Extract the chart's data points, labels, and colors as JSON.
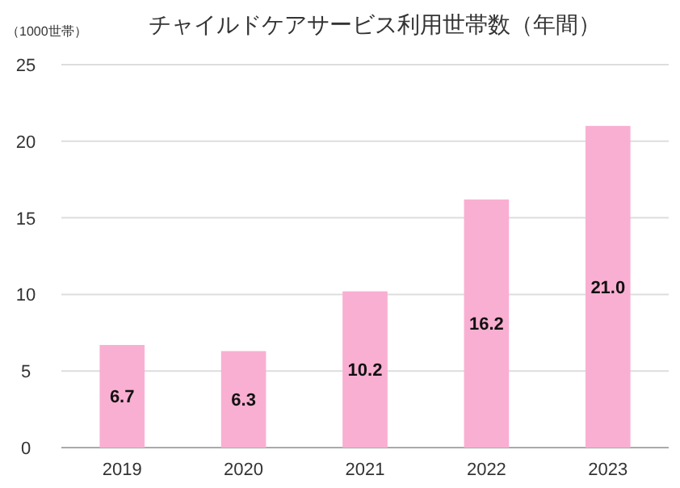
{
  "chart_data": {
    "type": "bar",
    "title": "チャイルドケアサービス利用世帯数（年間）",
    "ylabel": "（1000世帯）",
    "categories": [
      "2019",
      "2020",
      "2021",
      "2022",
      "2023"
    ],
    "values": [
      6.7,
      6.3,
      10.2,
      16.2,
      21.0
    ],
    "value_labels": [
      "6.7",
      "6.3",
      "10.2",
      "16.2",
      "21.0"
    ],
    "color": "#f9afd2",
    "ylim": [
      0,
      25
    ],
    "yticks": [
      0,
      5,
      10,
      15,
      20,
      25
    ],
    "grid": "y"
  }
}
